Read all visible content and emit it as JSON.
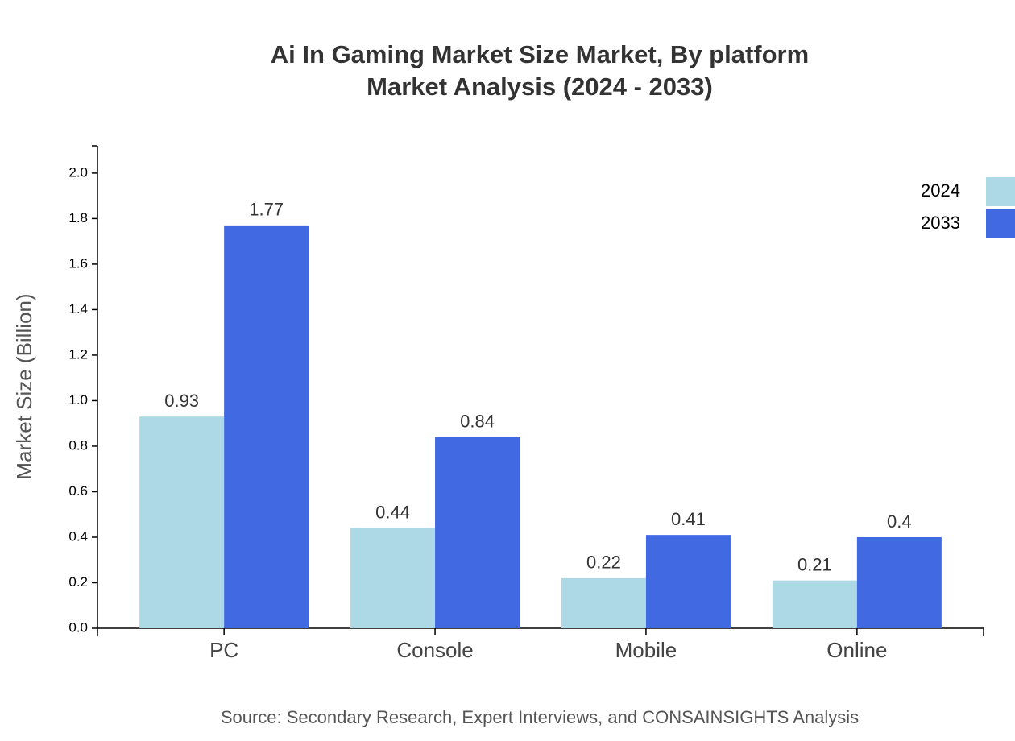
{
  "chart_data": {
    "type": "bar",
    "title": "Ai In Gaming Market Size Market, By platform",
    "subtitle": "Market Analysis (2024 - 2033)",
    "y_label": "Market Size (Billion)",
    "source": "Source: Secondary Research, Expert Interviews, and CONSAINSIGHTS Analysis",
    "categories": [
      "PC",
      "Console",
      "Mobile",
      "Online"
    ],
    "series": [
      {
        "name": "2024",
        "color": "#add8e6",
        "values": [
          0.93,
          0.44,
          0.22,
          0.21
        ]
      },
      {
        "name": "2033",
        "color": "#4169e1",
        "values": [
          1.77,
          0.84,
          0.41,
          0.4
        ]
      }
    ],
    "ylim": [
      0,
      2.12
    ],
    "yticks": [
      {
        "value": 0,
        "label": "0.0"
      },
      0.2,
      0.4,
      0.6,
      0.8,
      {
        "value": 1,
        "label": "1.0"
      },
      1.2,
      1.4,
      1.6,
      1.8,
      {
        "value": 2,
        "label": "2.0"
      }
    ],
    "legend": "top-right"
  }
}
